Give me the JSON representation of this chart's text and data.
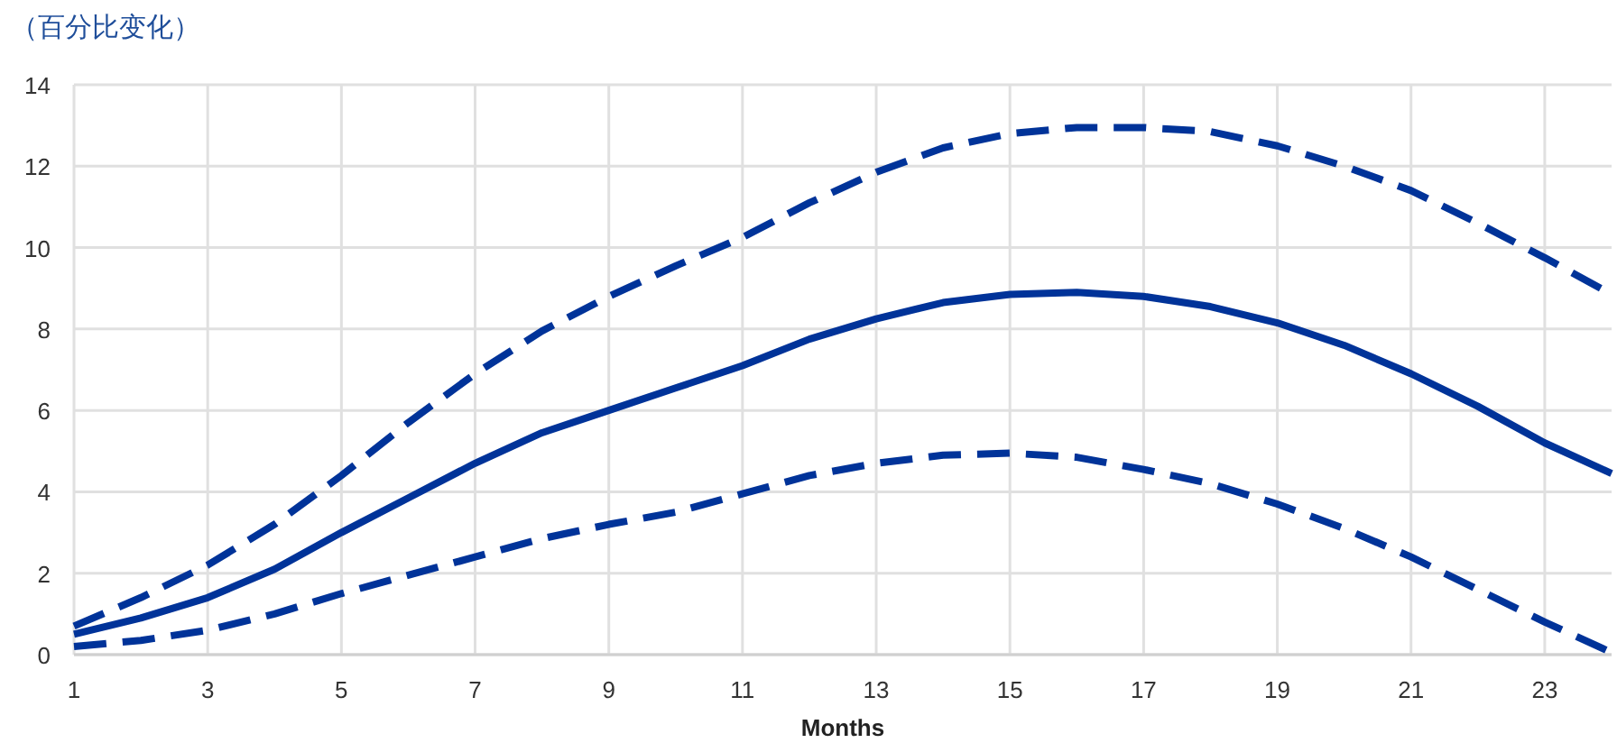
{
  "chart_data": {
    "type": "line",
    "title": "（百分比变化）",
    "xlabel": "Months",
    "x": [
      1,
      2,
      3,
      4,
      5,
      6,
      7,
      8,
      9,
      10,
      11,
      12,
      13,
      14,
      15,
      16,
      17,
      18,
      19,
      20,
      21,
      22,
      23,
      24
    ],
    "series": [
      {
        "color": "#003399",
        "line_style": "dashed",
        "values": [
          0.7,
          1.4,
          2.2,
          3.2,
          4.4,
          5.7,
          6.9,
          7.95,
          8.8,
          9.55,
          10.25,
          11.1,
          11.85,
          12.45,
          12.8,
          12.95,
          12.95,
          12.85,
          12.5,
          12.0,
          11.4,
          10.6,
          9.75,
          8.85
        ]
      },
      {
        "color": "#003399",
        "line_style": "solid",
        "values": [
          0.5,
          0.9,
          1.4,
          2.1,
          3.0,
          3.85,
          4.7,
          5.45,
          6.0,
          6.55,
          7.1,
          7.75,
          8.25,
          8.65,
          8.85,
          8.9,
          8.8,
          8.55,
          8.15,
          7.6,
          6.9,
          6.1,
          5.2,
          4.45
        ]
      },
      {
        "color": "#003399",
        "line_style": "dashed",
        "values": [
          0.2,
          0.35,
          0.6,
          1.0,
          1.5,
          1.95,
          2.4,
          2.85,
          3.2,
          3.5,
          3.95,
          4.4,
          4.7,
          4.9,
          4.95,
          4.85,
          4.55,
          4.2,
          3.7,
          3.1,
          2.4,
          1.6,
          0.8,
          0.05
        ]
      }
    ],
    "xlim": [
      1,
      24
    ],
    "xticks": [
      1,
      3,
      5,
      7,
      9,
      11,
      13,
      15,
      17,
      19,
      21,
      23
    ],
    "ylim": [
      0,
      14
    ],
    "yticks": [
      0,
      2,
      4,
      6,
      8,
      10,
      12,
      14
    ],
    "grid": true
  }
}
